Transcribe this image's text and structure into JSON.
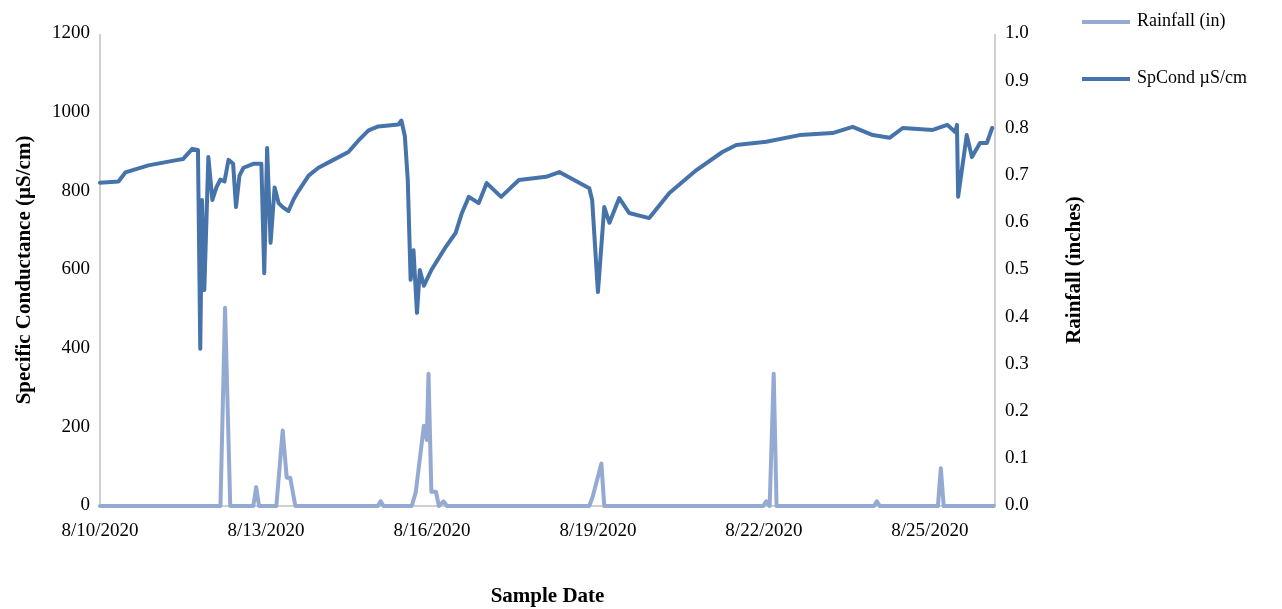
{
  "chart_data": {
    "type": "line",
    "xlabel": "Sample Date",
    "ylabel": "Specific Conductance (µS/cm)",
    "y2label": "Rainfall (inches)",
    "xlim": [
      "2020-08-10T00:00",
      "2020-08-26T04:15"
    ],
    "xticks": [
      {
        "value": "2020-08-10",
        "label": "8/10/2020"
      },
      {
        "value": "2020-08-13",
        "label": "8/13/2020"
      },
      {
        "value": "2020-08-16",
        "label": "8/16/2020"
      },
      {
        "value": "2020-08-19",
        "label": "8/19/2020"
      },
      {
        "value": "2020-08-22",
        "label": "8/22/2020"
      },
      {
        "value": "2020-08-25",
        "label": "8/25/2020"
      }
    ],
    "ylim": [
      0,
      1200
    ],
    "yticks": [
      0,
      200,
      400,
      600,
      800,
      1000,
      1200
    ],
    "y2lim": [
      0,
      1
    ],
    "y2ticks": [
      {
        "value": 0,
        "label": "0.0"
      },
      {
        "value": 0.1,
        "label": "0.1"
      },
      {
        "value": 0.2,
        "label": "0.2"
      },
      {
        "value": 0.3,
        "label": "0.3"
      },
      {
        "value": 0.4,
        "label": "0.4"
      },
      {
        "value": 0.5,
        "label": "0.5"
      },
      {
        "value": 0.6,
        "label": "0.6"
      },
      {
        "value": 0.7,
        "label": "0.7"
      },
      {
        "value": 0.8,
        "label": "0.8"
      },
      {
        "value": 0.9,
        "label": "0.9"
      },
      {
        "value": 1,
        "label": "1.0"
      }
    ],
    "grid": false,
    "legend": "top right",
    "marker": "none",
    "line_style": "solid",
    "series": [
      {
        "name": "Rainfall (in)",
        "color": "#95aad3",
        "axis": "y2",
        "x": [
          "2020-08-10T00:00",
          "2020-08-12T04:15",
          "2020-08-12T06:15",
          "2020-08-12T08:30",
          "2020-08-12T18:30",
          "2020-08-12T19:45",
          "2020-08-12T21:00",
          "2020-08-13T04:30",
          "2020-08-13T07:15",
          "2020-08-13T09:00",
          "2020-08-13T10:30",
          "2020-08-13T12:45",
          "2020-08-15T00:30",
          "2020-08-15T01:45",
          "2020-08-15T03:00",
          "2020-08-15T15:15",
          "2020-08-15T17:00",
          "2020-08-15T20:30",
          "2020-08-15T21:45",
          "2020-08-15T22:30",
          "2020-08-15T23:45",
          "2020-08-16T01:45",
          "2020-08-16T03:00",
          "2020-08-16T05:00",
          "2020-08-16T06:30",
          "2020-08-18T20:15",
          "2020-08-18T21:45",
          "2020-08-19T01:30",
          "2020-08-19T02:45",
          "2020-08-21T23:45",
          "2020-08-22T01:00",
          "2020-08-22T02:30",
          "2020-08-22T04:15",
          "2020-08-22T05:30",
          "2020-08-23T23:45",
          "2020-08-24T01:00",
          "2020-08-24T02:15",
          "2020-08-25T03:30",
          "2020-08-25T04:45",
          "2020-08-25T06:00",
          "2020-08-26T03:45"
        ],
        "values": [
          0,
          0,
          0.42,
          0,
          0,
          0.04,
          0,
          0,
          0.16,
          0.06,
          0.06,
          0,
          0,
          0.01,
          0,
          0,
          0.03,
          0.17,
          0.14,
          0.28,
          0.03,
          0.03,
          0,
          0.01,
          0,
          0,
          0.02,
          0.09,
          0,
          0,
          0.01,
          0,
          0.28,
          0,
          0,
          0.01,
          0,
          0,
          0.08,
          0,
          0
        ]
      },
      {
        "name": "SpCond µS/cm",
        "color": "#4673aa",
        "x": [
          "2020-08-10T00:00",
          "2020-08-10T08:00",
          "2020-08-10T11:00",
          "2020-08-10T21:00",
          "2020-08-11T08:00",
          "2020-08-11T12:00",
          "2020-08-11T16:00",
          "2020-08-11T18:30",
          "2020-08-11T19:30",
          "2020-08-11T20:15",
          "2020-08-11T21:15",
          "2020-08-11T23:00",
          "2020-08-12T00:45",
          "2020-08-12T02:30",
          "2020-08-12T04:15",
          "2020-08-12T06:00",
          "2020-08-12T07:45",
          "2020-08-12T09:45",
          "2020-08-12T11:00",
          "2020-08-12T12:30",
          "2020-08-12T14:15",
          "2020-08-12T18:30",
          "2020-08-12T22:00",
          "2020-08-12T23:15",
          "2020-08-13T00:30",
          "2020-08-13T02:00",
          "2020-08-13T03:45",
          "2020-08-13T05:30",
          "2020-08-13T07:15",
          "2020-08-13T09:45",
          "2020-08-13T12:00",
          "2020-08-13T14:00",
          "2020-08-13T18:30",
          "2020-08-13T22:45",
          "2020-08-14T05:15",
          "2020-08-14T11:45",
          "2020-08-14T16:15",
          "2020-08-14T20:30",
          "2020-08-15T00:45",
          "2020-08-15T09:30",
          "2020-08-15T10:45",
          "2020-08-15T12:15",
          "2020-08-15T13:30",
          "2020-08-15T14:45",
          "2020-08-15T16:00",
          "2020-08-15T17:30",
          "2020-08-15T18:45",
          "2020-08-15T20:30",
          "2020-08-15T23:45",
          "2020-08-16T06:00",
          "2020-08-16T10:15",
          "2020-08-16T13:00",
          "2020-08-16T16:00",
          "2020-08-16T20:15",
          "2020-08-16T23:45",
          "2020-08-17T06:00",
          "2020-08-17T13:45",
          "2020-08-18T01:30",
          "2020-08-18T07:15",
          "2020-08-18T20:15",
          "2020-08-18T21:30",
          "2020-08-19T00:00",
          "2020-08-19T02:45",
          "2020-08-19T05:00",
          "2020-08-19T09:15",
          "2020-08-19T13:30",
          "2020-08-19T22:15",
          "2020-08-20T07:00",
          "2020-08-20T18:45",
          "2020-08-21T06:00",
          "2020-08-21T12:00",
          "2020-08-22T01:00",
          "2020-08-22T15:30",
          "2020-08-23T05:45",
          "2020-08-23T14:30",
          "2020-08-23T23:15",
          "2020-08-24T06:30",
          "2020-08-24T12:15",
          "2020-08-25T01:15",
          "2020-08-25T07:30",
          "2020-08-25T11:00",
          "2020-08-25T11:45",
          "2020-08-25T12:15",
          "2020-08-25T16:00",
          "2020-08-25T18:15",
          "2020-08-25T21:45",
          "2020-08-26T00:45",
          "2020-08-26T03:00"
        ],
        "values": [
          822,
          825,
          848,
          866,
          878,
          882,
          908,
          905,
          400,
          778,
          549,
          887,
          778,
          810,
          830,
          825,
          880,
          870,
          760,
          840,
          860,
          870,
          870,
          592,
          910,
          669,
          810,
          770,
          760,
          750,
          780,
          800,
          840,
          860,
          880,
          900,
          930,
          955,
          965,
          970,
          980,
          940,
          830,
          575,
          650,
          491,
          600,
          560,
          600,
          659,
          694,
          745,
          786,
          770,
          821,
          786,
          829,
          837,
          849,
          808,
          778,
          544,
          760,
          720,
          783,
          745,
          732,
          796,
          854,
          900,
          918,
          926,
          943,
          948,
          964,
          943,
          936,
          961,
          956,
          969,
          951,
          969,
          786,
          943,
          887,
          923,
          923,
          961
        ]
      }
    ]
  }
}
